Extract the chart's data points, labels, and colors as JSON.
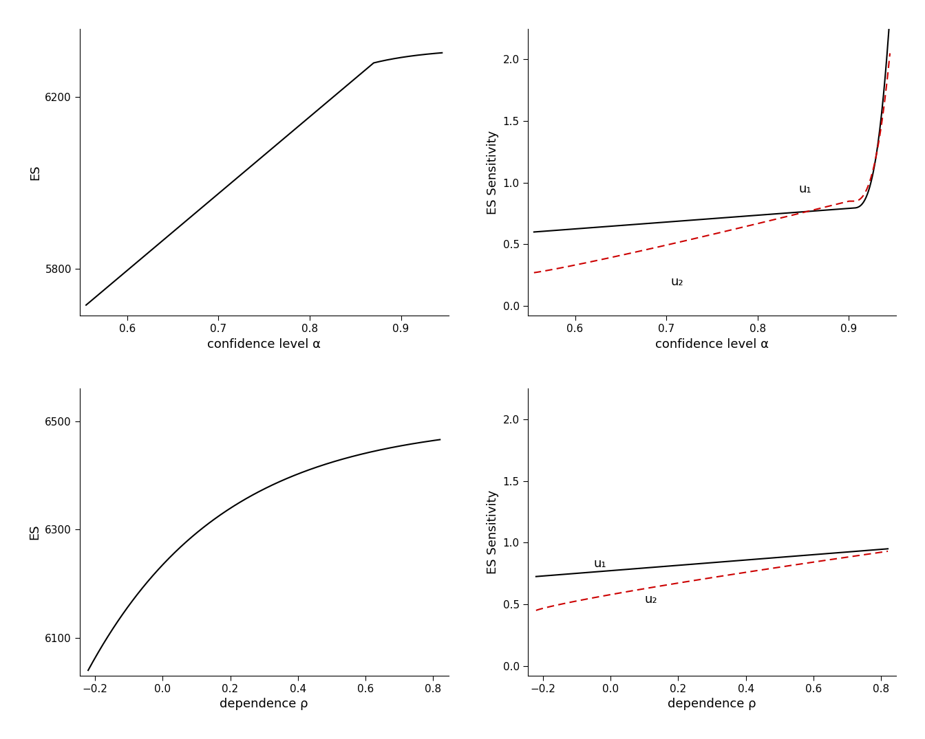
{
  "fig_width": 13.44,
  "fig_height": 10.75,
  "background_color": "#ffffff",
  "panel1": {
    "xlabel": "confidence level α",
    "ylabel": "ES",
    "ylim": [
      5690,
      6360
    ],
    "yticks": [
      5800,
      6200
    ],
    "xticks": [
      0.6,
      0.7,
      0.8,
      0.9
    ]
  },
  "panel2": {
    "xlabel": "confidence level α",
    "ylabel": "ES Sensitivity",
    "ylim": [
      -0.08,
      2.25
    ],
    "yticks": [
      0.0,
      0.5,
      1.0,
      1.5,
      2.0
    ],
    "xticks": [
      0.6,
      0.7,
      0.8,
      0.9
    ],
    "label_u1": "u₁",
    "label_u2": "u₂"
  },
  "panel3": {
    "xlabel": "dependence ρ",
    "ylabel": "ES",
    "ylim": [
      6030,
      6560
    ],
    "yticks": [
      6100,
      6300,
      6500
    ],
    "xticks": [
      -0.2,
      0.0,
      0.2,
      0.4,
      0.6,
      0.8
    ]
  },
  "panel4": {
    "xlabel": "dependence ρ",
    "ylabel": "ES Sensitivity",
    "ylim": [
      -0.08,
      2.25
    ],
    "yticks": [
      0.0,
      0.5,
      1.0,
      1.5,
      2.0
    ],
    "xticks": [
      -0.2,
      0.0,
      0.2,
      0.4,
      0.6,
      0.8
    ],
    "label_u1": "u₁",
    "label_u2": "u₂"
  },
  "line_color_black": "#000000",
  "line_color_red": "#cc0000",
  "line_width": 1.5,
  "font_size_label": 13,
  "font_size_tick": 11
}
